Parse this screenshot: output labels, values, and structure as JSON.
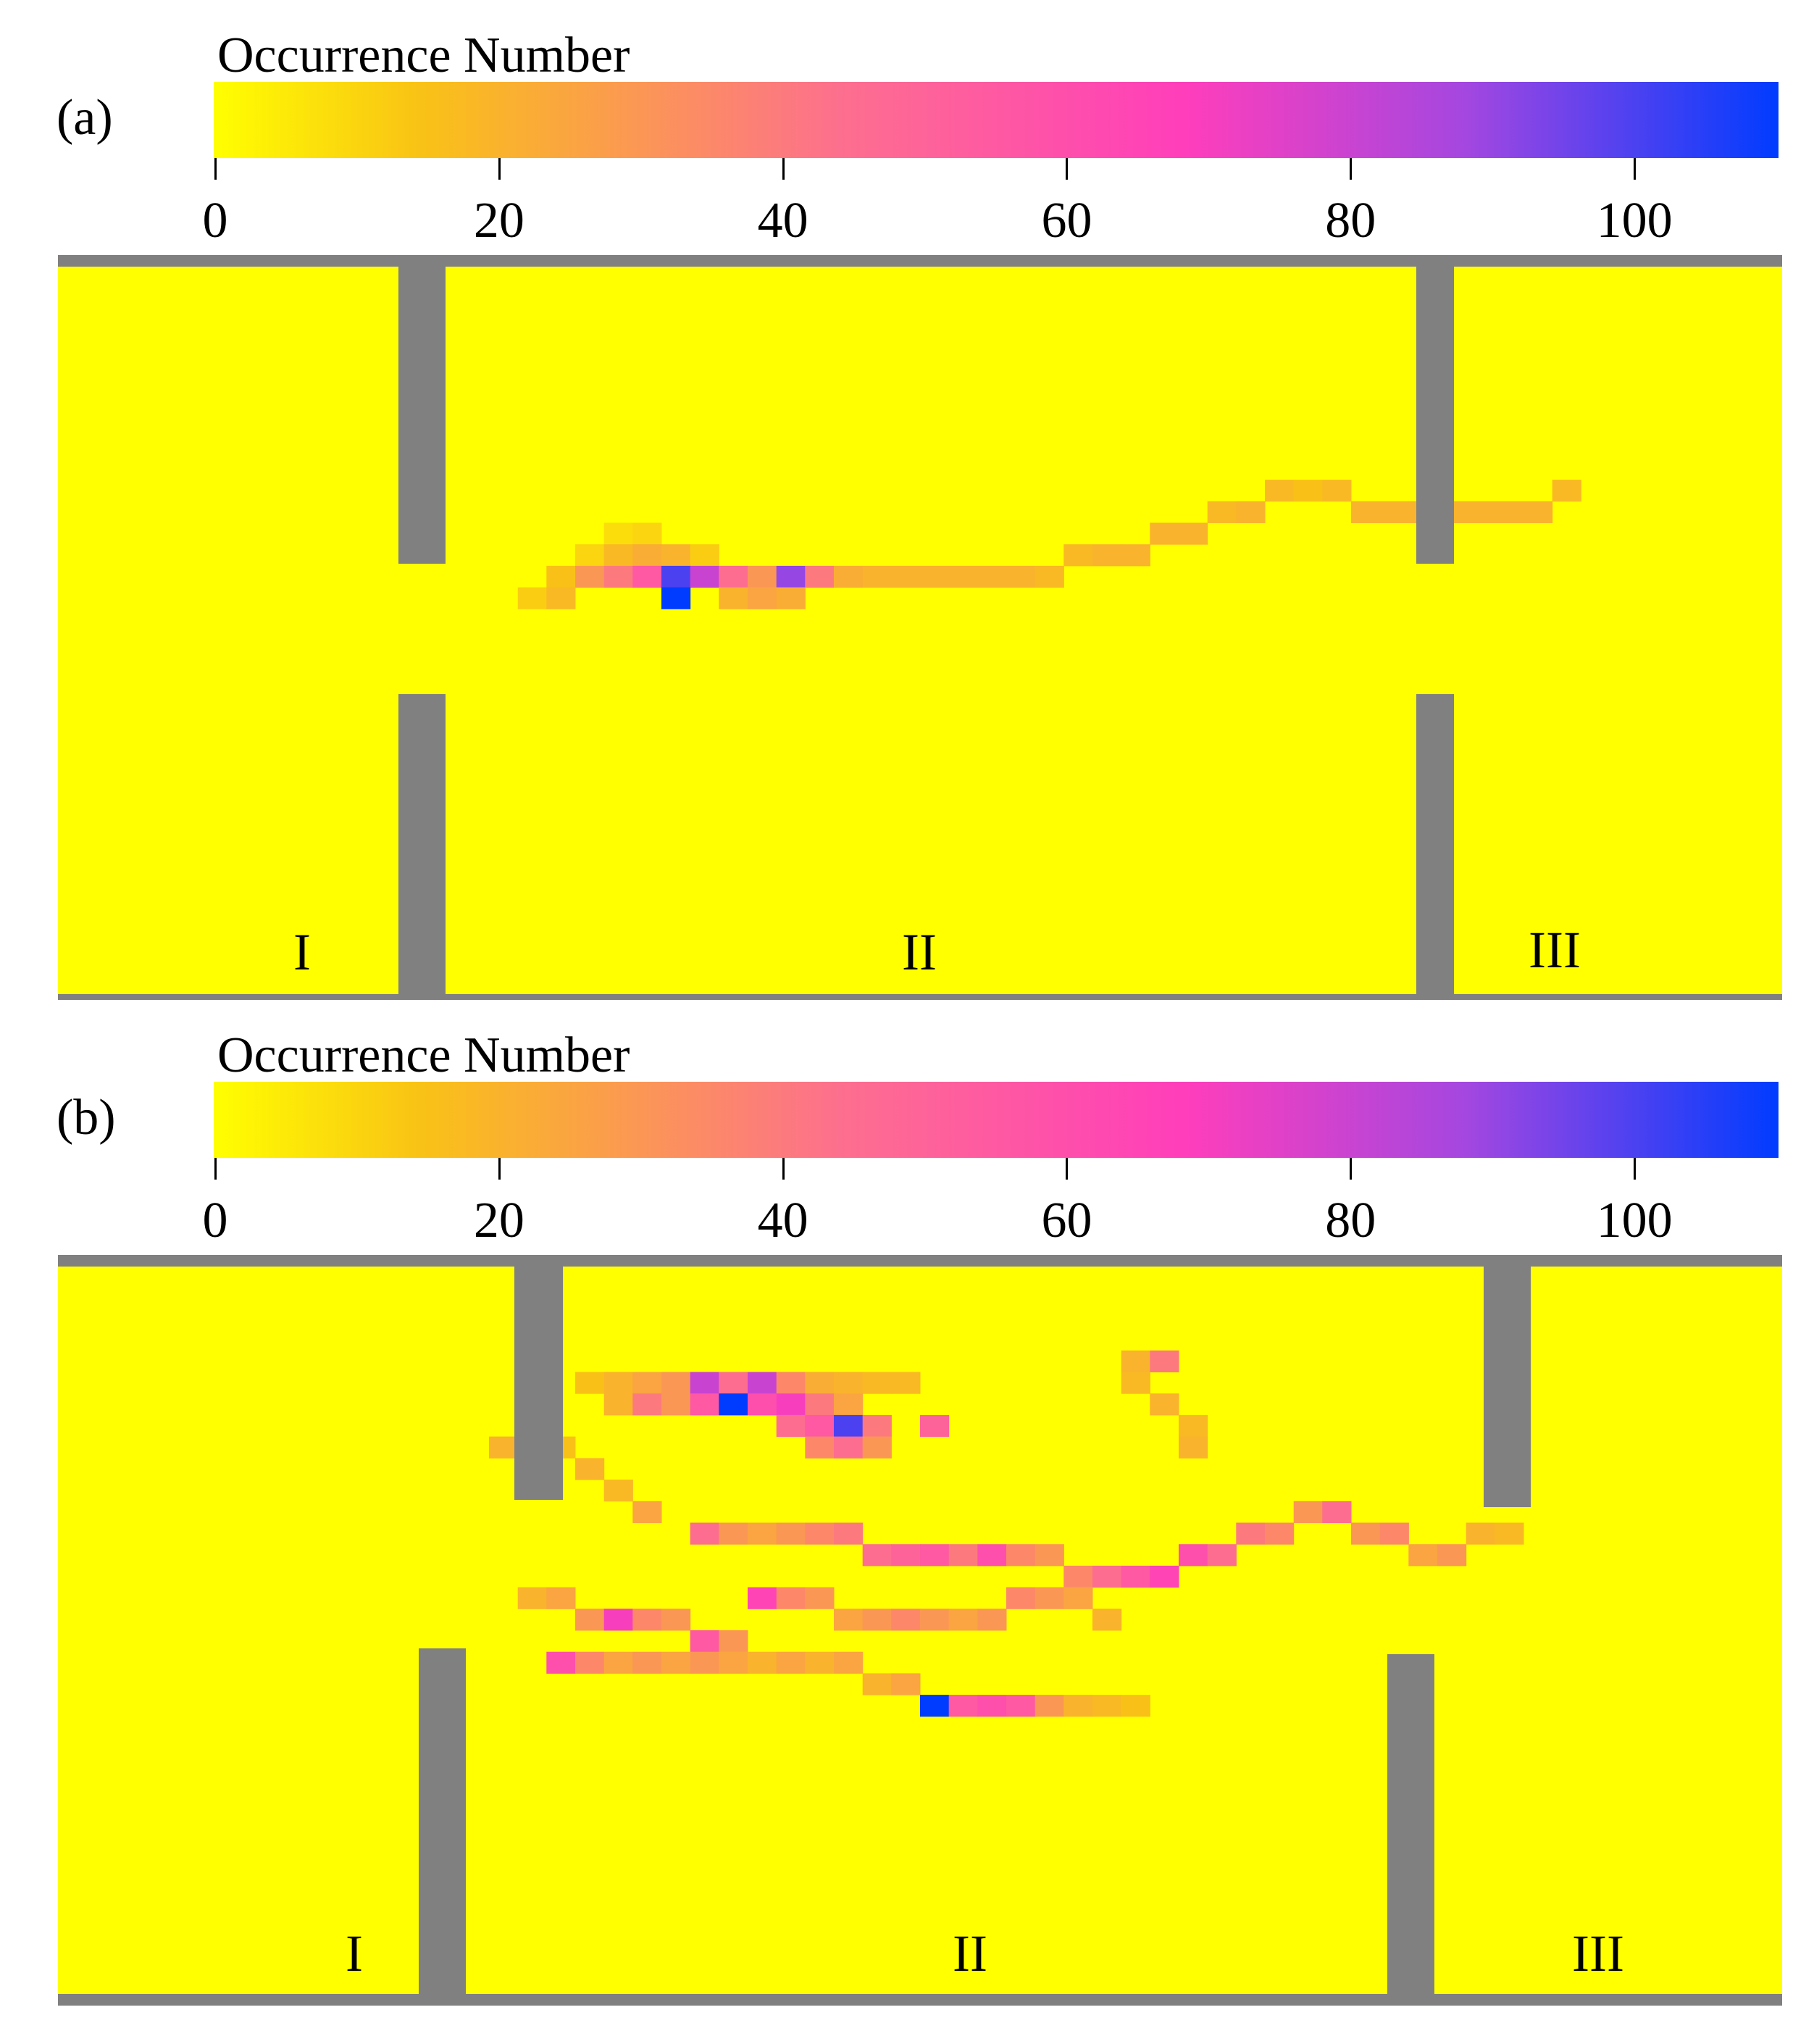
{
  "chart_data": [
    {
      "type": "heatmap",
      "panel_label": "(a)",
      "colorbar": {
        "title": "Occurrence Number",
        "ticks": [
          "0",
          "20",
          "40",
          "60",
          "80",
          "100"
        ],
        "range": [
          0,
          110
        ],
        "colors": [
          "#ffff00",
          "#f9c315",
          "#fd6f8e",
          "#ff3ebb",
          "#a447e0",
          "#003cff"
        ]
      },
      "room_labels": [
        "I",
        "II",
        "III"
      ],
      "background_value": 0,
      "grid_shape": [
        60,
        34
      ],
      "cells": [
        {
          "col": 19,
          "row": 12,
          "v": 8
        },
        {
          "col": 20,
          "row": 12,
          "v": 10
        },
        {
          "col": 18,
          "row": 13,
          "v": 10
        },
        {
          "col": 19,
          "row": 13,
          "v": 18
        },
        {
          "col": 20,
          "row": 13,
          "v": 22
        },
        {
          "col": 21,
          "row": 13,
          "v": 20
        },
        {
          "col": 22,
          "row": 13,
          "v": 12
        },
        {
          "col": 17,
          "row": 14,
          "v": 15
        },
        {
          "col": 18,
          "row": 14,
          "v": 30
        },
        {
          "col": 19,
          "row": 14,
          "v": 40
        },
        {
          "col": 20,
          "row": 14,
          "v": 55
        },
        {
          "col": 21,
          "row": 14,
          "v": 100
        },
        {
          "col": 22,
          "row": 14,
          "v": 80
        },
        {
          "col": 23,
          "row": 14,
          "v": 45
        },
        {
          "col": 24,
          "row": 14,
          "v": 30
        },
        {
          "col": 25,
          "row": 14,
          "v": 90
        },
        {
          "col": 26,
          "row": 14,
          "v": 40
        },
        {
          "col": 27,
          "row": 14,
          "v": 22
        },
        {
          "col": 28,
          "row": 14,
          "v": 20
        },
        {
          "col": 29,
          "row": 14,
          "v": 20
        },
        {
          "col": 30,
          "row": 14,
          "v": 20
        },
        {
          "col": 31,
          "row": 14,
          "v": 20
        },
        {
          "col": 32,
          "row": 14,
          "v": 20
        },
        {
          "col": 33,
          "row": 14,
          "v": 20
        },
        {
          "col": 34,
          "row": 14,
          "v": 18
        },
        {
          "col": 16,
          "row": 15,
          "v": 12
        },
        {
          "col": 17,
          "row": 15,
          "v": 18
        },
        {
          "col": 21,
          "row": 15,
          "v": 110
        },
        {
          "col": 23,
          "row": 15,
          "v": 20
        },
        {
          "col": 24,
          "row": 15,
          "v": 25
        },
        {
          "col": 25,
          "row": 15,
          "v": 22
        },
        {
          "col": 35,
          "row": 13,
          "v": 18
        },
        {
          "col": 36,
          "row": 13,
          "v": 20
        },
        {
          "col": 37,
          "row": 13,
          "v": 20
        },
        {
          "col": 38,
          "row": 12,
          "v": 20
        },
        {
          "col": 39,
          "row": 12,
          "v": 20
        },
        {
          "col": 40,
          "row": 11,
          "v": 18
        },
        {
          "col": 41,
          "row": 11,
          "v": 20
        },
        {
          "col": 42,
          "row": 10,
          "v": 18
        },
        {
          "col": 43,
          "row": 10,
          "v": 15
        },
        {
          "col": 44,
          "row": 10,
          "v": 18
        },
        {
          "col": 45,
          "row": 11,
          "v": 20
        },
        {
          "col": 46,
          "row": 11,
          "v": 20
        },
        {
          "col": 47,
          "row": 11,
          "v": 20
        },
        {
          "col": 48,
          "row": 11,
          "v": 20
        },
        {
          "col": 49,
          "row": 11,
          "v": 20
        },
        {
          "col": 50,
          "row": 11,
          "v": 20
        },
        {
          "col": 51,
          "row": 11,
          "v": 20
        },
        {
          "col": 52,
          "row": 10,
          "v": 18
        }
      ]
    },
    {
      "type": "heatmap",
      "panel_label": "(b)",
      "colorbar": {
        "title": "Occurrence Number",
        "ticks": [
          "0",
          "20",
          "40",
          "60",
          "80",
          "100"
        ],
        "range": [
          0,
          110
        ],
        "colors": [
          "#ffff00",
          "#f9c315",
          "#fd6f8e",
          "#ff3ebb",
          "#a447e0",
          "#003cff"
        ]
      },
      "room_labels": [
        "I",
        "II",
        "III"
      ],
      "background_value": 0,
      "grid_shape": [
        60,
        34
      ],
      "cells": [
        {
          "col": 18,
          "row": 5,
          "v": 15
        },
        {
          "col": 19,
          "row": 5,
          "v": 20
        },
        {
          "col": 20,
          "row": 5,
          "v": 25
        },
        {
          "col": 21,
          "row": 5,
          "v": 30
        },
        {
          "col": 22,
          "row": 5,
          "v": 80
        },
        {
          "col": 23,
          "row": 5,
          "v": 45
        },
        {
          "col": 24,
          "row": 5,
          "v": 80
        },
        {
          "col": 25,
          "row": 5,
          "v": 35
        },
        {
          "col": 26,
          "row": 5,
          "v": 22
        },
        {
          "col": 27,
          "row": 5,
          "v": 20
        },
        {
          "col": 28,
          "row": 5,
          "v": 18
        },
        {
          "col": 29,
          "row": 5,
          "v": 18
        },
        {
          "col": 19,
          "row": 6,
          "v": 20
        },
        {
          "col": 20,
          "row": 6,
          "v": 40
        },
        {
          "col": 21,
          "row": 6,
          "v": 30
        },
        {
          "col": 22,
          "row": 6,
          "v": 55
        },
        {
          "col": 23,
          "row": 6,
          "v": 110
        },
        {
          "col": 24,
          "row": 6,
          "v": 60
        },
        {
          "col": 25,
          "row": 6,
          "v": 70
        },
        {
          "col": 26,
          "row": 6,
          "v": 40
        },
        {
          "col": 27,
          "row": 6,
          "v": 25
        },
        {
          "col": 25,
          "row": 7,
          "v": 45
        },
        {
          "col": 26,
          "row": 7,
          "v": 55
        },
        {
          "col": 27,
          "row": 7,
          "v": 100
        },
        {
          "col": 28,
          "row": 7,
          "v": 40
        },
        {
          "col": 30,
          "row": 7,
          "v": 50
        },
        {
          "col": 15,
          "row": 8,
          "v": 20
        },
        {
          "col": 16,
          "row": 8,
          "v": 25
        },
        {
          "col": 17,
          "row": 8,
          "v": 15
        },
        {
          "col": 26,
          "row": 8,
          "v": 35
        },
        {
          "col": 27,
          "row": 8,
          "v": 45
        },
        {
          "col": 28,
          "row": 8,
          "v": 30
        },
        {
          "col": 37,
          "row": 4,
          "v": 20
        },
        {
          "col": 38,
          "row": 4,
          "v": 40
        },
        {
          "col": 37,
          "row": 5,
          "v": 18
        },
        {
          "col": 38,
          "row": 6,
          "v": 20
        },
        {
          "col": 39,
          "row": 7,
          "v": 18
        },
        {
          "col": 39,
          "row": 8,
          "v": 20
        },
        {
          "col": 18,
          "row": 9,
          "v": 20
        },
        {
          "col": 19,
          "row": 10,
          "v": 18
        },
        {
          "col": 20,
          "row": 11,
          "v": 25
        },
        {
          "col": 22,
          "row": 12,
          "v": 45
        },
        {
          "col": 23,
          "row": 12,
          "v": 30
        },
        {
          "col": 24,
          "row": 12,
          "v": 25
        },
        {
          "col": 25,
          "row": 12,
          "v": 30
        },
        {
          "col": 26,
          "row": 12,
          "v": 35
        },
        {
          "col": 27,
          "row": 12,
          "v": 40
        },
        {
          "col": 28,
          "row": 13,
          "v": 45
        },
        {
          "col": 29,
          "row": 13,
          "v": 50
        },
        {
          "col": 30,
          "row": 13,
          "v": 55
        },
        {
          "col": 31,
          "row": 13,
          "v": 40
        },
        {
          "col": 32,
          "row": 13,
          "v": 60
        },
        {
          "col": 33,
          "row": 13,
          "v": 35
        },
        {
          "col": 34,
          "row": 13,
          "v": 30
        },
        {
          "col": 35,
          "row": 14,
          "v": 35
        },
        {
          "col": 36,
          "row": 14,
          "v": 45
        },
        {
          "col": 37,
          "row": 14,
          "v": 55
        },
        {
          "col": 38,
          "row": 14,
          "v": 65
        },
        {
          "col": 39,
          "row": 13,
          "v": 60
        },
        {
          "col": 40,
          "row": 13,
          "v": 45
        },
        {
          "col": 41,
          "row": 12,
          "v": 40
        },
        {
          "col": 42,
          "row": 12,
          "v": 35
        },
        {
          "col": 43,
          "row": 11,
          "v": 30
        },
        {
          "col": 44,
          "row": 11,
          "v": 45
        },
        {
          "col": 45,
          "row": 12,
          "v": 30
        },
        {
          "col": 46,
          "row": 12,
          "v": 35
        },
        {
          "col": 47,
          "row": 13,
          "v": 25
        },
        {
          "col": 48,
          "row": 13,
          "v": 30
        },
        {
          "col": 49,
          "row": 12,
          "v": 20
        },
        {
          "col": 50,
          "row": 12,
          "v": 18
        },
        {
          "col": 16,
          "row": 15,
          "v": 20
        },
        {
          "col": 17,
          "row": 15,
          "v": 25
        },
        {
          "col": 18,
          "row": 16,
          "v": 30
        },
        {
          "col": 19,
          "row": 16,
          "v": 70
        },
        {
          "col": 20,
          "row": 16,
          "v": 35
        },
        {
          "col": 21,
          "row": 16,
          "v": 30
        },
        {
          "col": 22,
          "row": 17,
          "v": 55
        },
        {
          "col": 23,
          "row": 17,
          "v": 30
        },
        {
          "col": 24,
          "row": 15,
          "v": 65
        },
        {
          "col": 25,
          "row": 15,
          "v": 35
        },
        {
          "col": 26,
          "row": 15,
          "v": 30
        },
        {
          "col": 27,
          "row": 16,
          "v": 25
        },
        {
          "col": 28,
          "row": 16,
          "v": 30
        },
        {
          "col": 29,
          "row": 16,
          "v": 35
        },
        {
          "col": 30,
          "row": 16,
          "v": 30
        },
        {
          "col": 31,
          "row": 16,
          "v": 25
        },
        {
          "col": 32,
          "row": 16,
          "v": 30
        },
        {
          "col": 33,
          "row": 15,
          "v": 35
        },
        {
          "col": 34,
          "row": 15,
          "v": 30
        },
        {
          "col": 35,
          "row": 15,
          "v": 25
        },
        {
          "col": 36,
          "row": 16,
          "v": 20
        },
        {
          "col": 17,
          "row": 18,
          "v": 60
        },
        {
          "col": 18,
          "row": 18,
          "v": 35
        },
        {
          "col": 19,
          "row": 18,
          "v": 25
        },
        {
          "col": 20,
          "row": 18,
          "v": 30
        },
        {
          "col": 21,
          "row": 18,
          "v": 25
        },
        {
          "col": 22,
          "row": 18,
          "v": 30
        },
        {
          "col": 23,
          "row": 18,
          "v": 25
        },
        {
          "col": 24,
          "row": 18,
          "v": 20
        },
        {
          "col": 25,
          "row": 18,
          "v": 25
        },
        {
          "col": 26,
          "row": 18,
          "v": 20
        },
        {
          "col": 27,
          "row": 18,
          "v": 25
        },
        {
          "col": 28,
          "row": 19,
          "v": 20
        },
        {
          "col": 29,
          "row": 19,
          "v": 25
        },
        {
          "col": 30,
          "row": 20,
          "v": 110
        },
        {
          "col": 31,
          "row": 20,
          "v": 55
        },
        {
          "col": 32,
          "row": 20,
          "v": 60
        },
        {
          "col": 33,
          "row": 20,
          "v": 55
        },
        {
          "col": 34,
          "row": 20,
          "v": 30
        },
        {
          "col": 35,
          "row": 20,
          "v": 20
        },
        {
          "col": 36,
          "row": 20,
          "v": 18
        },
        {
          "col": 37,
          "row": 20,
          "v": 15
        }
      ]
    }
  ]
}
